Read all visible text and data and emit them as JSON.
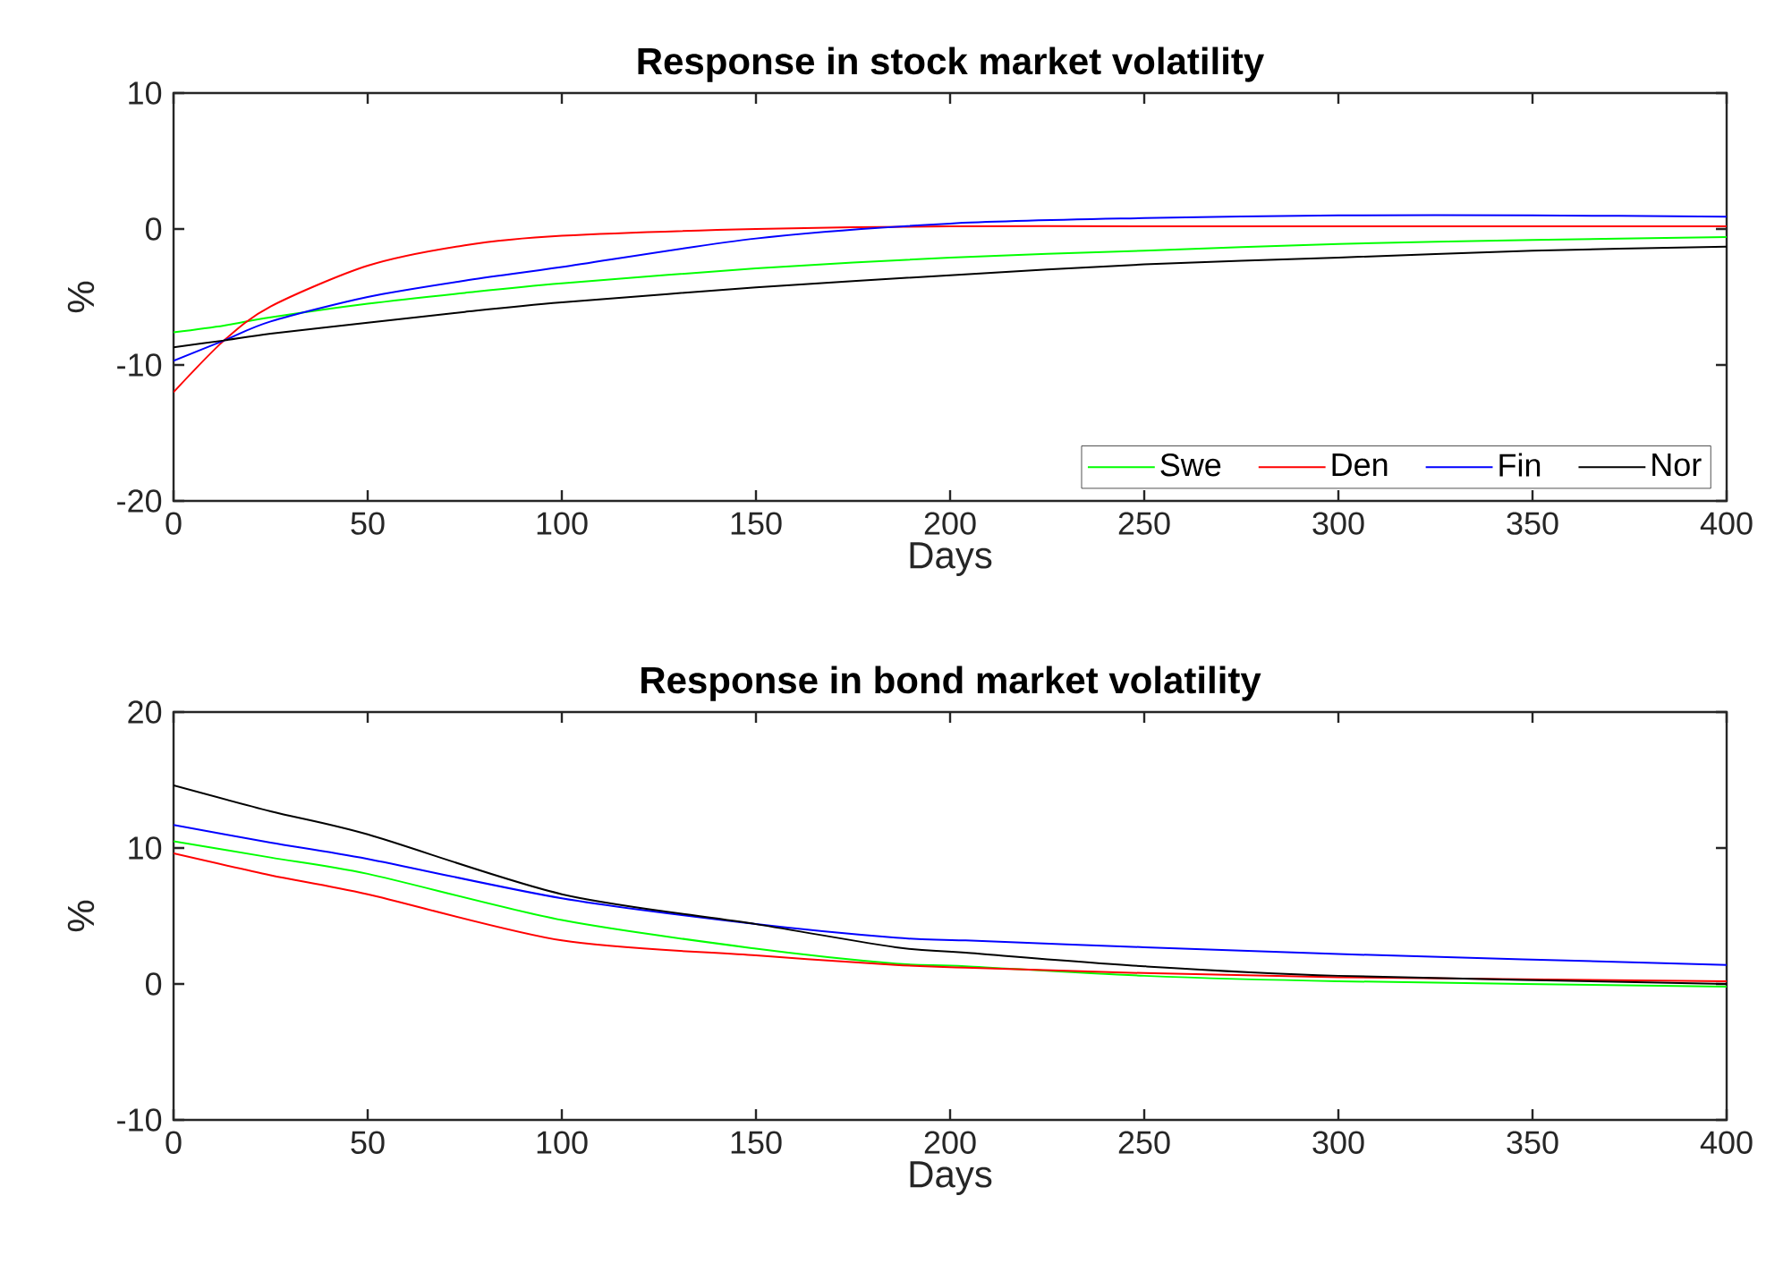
{
  "chart_data": [
    {
      "type": "line",
      "title": "Response in stock market volatility",
      "xlabel": "Days",
      "ylabel": "%",
      "xlim": [
        0,
        400
      ],
      "xticks": [
        0,
        50,
        100,
        150,
        200,
        250,
        300,
        350,
        400
      ],
      "ylim": [
        -20,
        10
      ],
      "yticks": [
        -20,
        -10,
        0,
        10
      ],
      "legend": "bottom right",
      "grid": false,
      "x": [
        0,
        13,
        25,
        50,
        75,
        100,
        150,
        200,
        250,
        300,
        350,
        400
      ],
      "series": [
        {
          "name": "Swe",
          "color": "#00ff00",
          "values": [
            -7.6,
            -7.1,
            -6.5,
            -5.5,
            -4.7,
            -4.0,
            -2.9,
            -2.1,
            -1.6,
            -1.1,
            -0.8,
            -0.6
          ]
        },
        {
          "name": "Den",
          "color": "#ff0000",
          "values": [
            -12.0,
            -8.2,
            -5.7,
            -2.7,
            -1.2,
            -0.5,
            0.0,
            0.2,
            0.2,
            0.2,
            0.2,
            0.2
          ]
        },
        {
          "name": "Fin",
          "color": "#0000ff",
          "values": [
            -9.7,
            -8.2,
            -6.8,
            -5.0,
            -3.8,
            -2.8,
            -0.7,
            0.4,
            0.8,
            1.0,
            1.0,
            0.9
          ]
        },
        {
          "name": "Nor",
          "color": "#000000",
          "values": [
            -8.7,
            -8.2,
            -7.7,
            -6.9,
            -6.1,
            -5.4,
            -4.3,
            -3.4,
            -2.6,
            -2.1,
            -1.6,
            -1.3
          ]
        }
      ]
    },
    {
      "type": "line",
      "title": "Response in bond market volatility",
      "xlabel": "Days",
      "ylabel": "%",
      "xlim": [
        0,
        400
      ],
      "xticks": [
        0,
        50,
        100,
        150,
        200,
        250,
        300,
        350,
        400
      ],
      "ylim": [
        -10,
        20
      ],
      "yticks": [
        -10,
        0,
        10,
        20
      ],
      "grid": false,
      "x": [
        0,
        25,
        50,
        100,
        150,
        186,
        204,
        250,
        300,
        400
      ],
      "series": [
        {
          "color": "#00ff00",
          "values": [
            10.5,
            9.3,
            8.1,
            4.7,
            2.6,
            1.5,
            1.3,
            0.6,
            0.2,
            -0.2
          ]
        },
        {
          "color": "#ff0000",
          "values": [
            9.6,
            8.0,
            6.6,
            3.2,
            2.1,
            1.4,
            1.2,
            0.8,
            0.5,
            0.2
          ]
        },
        {
          "color": "#0000ff",
          "values": [
            11.7,
            10.4,
            9.2,
            6.3,
            4.4,
            3.4,
            3.2,
            2.7,
            2.2,
            1.4
          ]
        },
        {
          "color": "#000000",
          "values": [
            14.6,
            12.7,
            11.0,
            6.6,
            4.4,
            2.7,
            2.3,
            1.3,
            0.6,
            0.0
          ]
        }
      ]
    }
  ]
}
